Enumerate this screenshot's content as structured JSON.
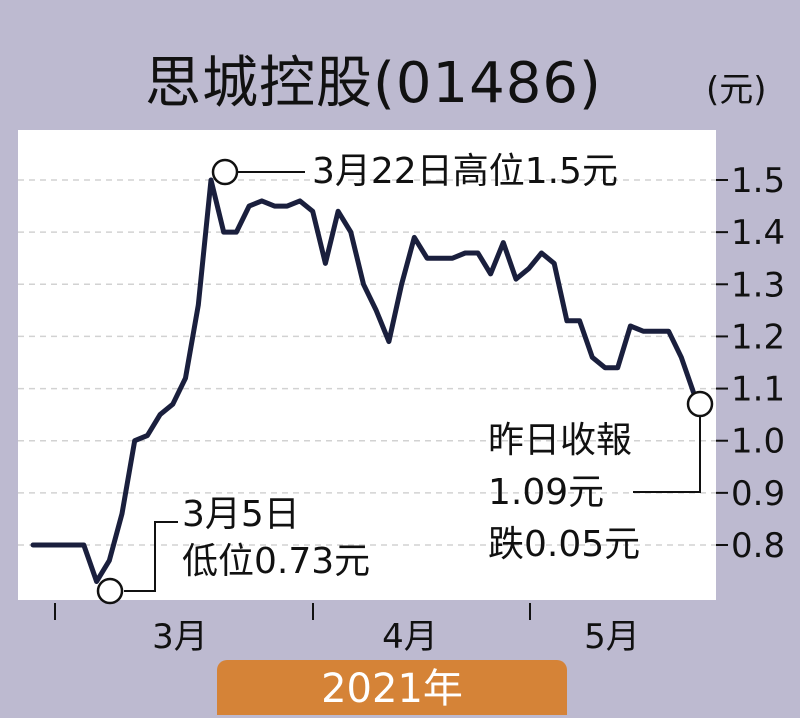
{
  "chart_data": {
    "type": "line",
    "title": "思城控股(01486)",
    "unit": "(元)",
    "year_label": "2021年",
    "months": [
      "3月",
      "4月",
      "5月"
    ],
    "yticks": [
      "1.5",
      "1.4",
      "1.3",
      "1.2",
      "1.1",
      "1.0",
      "0.9",
      "0.8"
    ],
    "ylim": [
      0.73,
      1.55
    ],
    "grid": true,
    "series": [
      {
        "values": [
          0.8,
          0.8,
          0.8,
          0.8,
          0.8,
          0.73,
          0.77,
          0.86,
          1.0,
          1.01,
          1.05,
          1.07,
          1.12,
          1.26,
          1.5,
          1.4,
          1.4,
          1.45,
          1.46,
          1.45,
          1.45,
          1.46,
          1.44,
          1.34,
          1.44,
          1.4,
          1.3,
          1.25,
          1.19,
          1.3,
          1.39,
          1.35,
          1.35,
          1.35,
          1.36,
          1.36,
          1.32,
          1.38,
          1.31,
          1.33,
          1.36,
          1.34,
          1.23,
          1.23,
          1.16,
          1.14,
          1.14,
          1.22,
          1.21,
          1.21,
          1.21,
          1.16,
          1.09
        ]
      }
    ],
    "annotations": {
      "high": "3月22日高位1.5元",
      "low_line1": "3月5日",
      "low_line2": "低位0.73元",
      "last_line1": "昨日收報",
      "last_line2": "1.09元",
      "last_line3": "跌0.05元"
    }
  }
}
